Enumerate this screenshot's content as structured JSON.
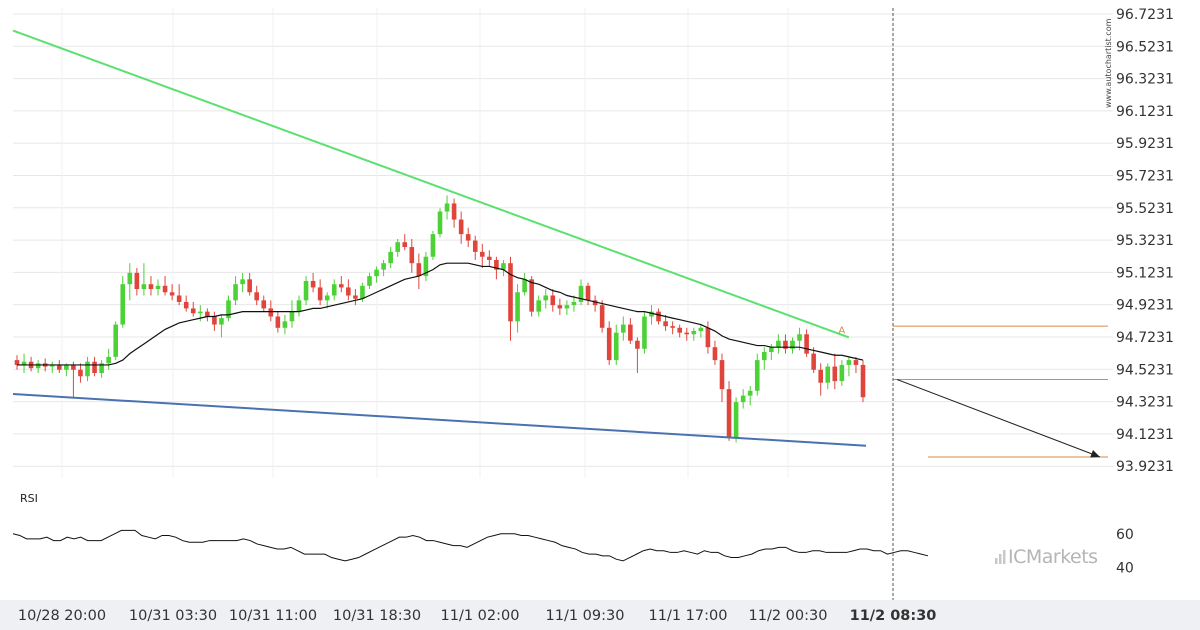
{
  "brand": {
    "watermark": "www.autochartist.com",
    "logo_text": "ICMarkets"
  },
  "chart_data": [
    {
      "type": "candlestick",
      "title": "",
      "y_ticks": [
        "96.7231",
        "96.5231",
        "96.3231",
        "96.1231",
        "95.9231",
        "95.7231",
        "95.5231",
        "95.3231",
        "95.1231",
        "94.9231",
        "94.7231",
        "94.5231",
        "94.3231",
        "94.1231",
        "93.9231"
      ],
      "ylim": [
        93.85,
        96.76
      ],
      "x_ticks": [
        "10/28 20:00",
        "10/31 03:30",
        "10/31 11:00",
        "10/31 18:30",
        "11/1 02:00",
        "11/1 09:30",
        "11/1 17:00",
        "11/2 00:30",
        "11/2 08:30"
      ],
      "highlighted_x_tick": "11/2 08:30",
      "grid": true,
      "colors": {
        "up": "#4cd137",
        "down": "#e0453c",
        "resistance": "#5ce070",
        "support": "#4a72b0",
        "target": "#d98a40",
        "moving_average": "#111111",
        "projection": "#222222"
      },
      "candles": [
        [
          94.58,
          94.61,
          94.52,
          94.55
        ],
        [
          94.55,
          94.62,
          94.5,
          94.57
        ],
        [
          94.57,
          94.6,
          94.51,
          94.53
        ],
        [
          94.53,
          94.58,
          94.5,
          94.56
        ],
        [
          94.56,
          94.59,
          94.51,
          94.54
        ],
        [
          94.54,
          94.57,
          94.5,
          94.55
        ],
        [
          94.55,
          94.58,
          94.5,
          94.52
        ],
        [
          94.52,
          94.56,
          94.48,
          94.55
        ],
        [
          94.55,
          94.57,
          94.35,
          94.52
        ],
        [
          94.52,
          94.56,
          94.44,
          94.48
        ],
        [
          94.48,
          94.6,
          94.45,
          94.57
        ],
        [
          94.57,
          94.6,
          94.48,
          94.5
        ],
        [
          94.5,
          94.58,
          94.47,
          94.56
        ],
        [
          94.56,
          94.65,
          94.52,
          94.6
        ],
        [
          94.6,
          94.82,
          94.58,
          94.8
        ],
        [
          94.8,
          95.1,
          94.78,
          95.05
        ],
        [
          95.05,
          95.18,
          94.95,
          95.12
        ],
        [
          95.12,
          95.15,
          94.98,
          95.02
        ],
        [
          95.02,
          95.18,
          94.98,
          95.05
        ],
        [
          95.05,
          95.1,
          94.98,
          95.02
        ],
        [
          95.02,
          95.08,
          94.98,
          95.04
        ],
        [
          95.04,
          95.1,
          94.98,
          95.0
        ],
        [
          95.0,
          95.05,
          94.95,
          94.98
        ],
        [
          94.98,
          95.05,
          94.92,
          94.94
        ],
        [
          94.94,
          94.98,
          94.88,
          94.9
        ],
        [
          94.9,
          94.94,
          94.85,
          94.87
        ],
        [
          94.87,
          94.92,
          94.82,
          94.88
        ],
        [
          94.88,
          94.9,
          94.82,
          94.85
        ],
        [
          94.85,
          94.88,
          94.76,
          94.8
        ],
        [
          94.8,
          94.86,
          94.72,
          94.84
        ],
        [
          94.84,
          94.98,
          94.82,
          94.95
        ],
        [
          94.95,
          95.1,
          94.92,
          95.05
        ],
        [
          95.05,
          95.12,
          95.0,
          95.08
        ],
        [
          95.08,
          95.12,
          94.98,
          95.0
        ],
        [
          95.0,
          95.04,
          94.92,
          94.95
        ],
        [
          94.95,
          94.98,
          94.88,
          94.9
        ],
        [
          94.9,
          94.95,
          94.82,
          94.85
        ],
        [
          94.85,
          94.88,
          94.75,
          94.78
        ],
        [
          94.78,
          94.86,
          94.74,
          94.82
        ],
        [
          94.82,
          94.95,
          94.78,
          94.88
        ],
        [
          94.88,
          94.98,
          94.85,
          94.95
        ],
        [
          94.95,
          95.1,
          94.92,
          95.07
        ],
        [
          95.07,
          95.12,
          95.0,
          95.03
        ],
        [
          95.03,
          95.08,
          94.92,
          94.95
        ],
        [
          94.95,
          95.0,
          94.9,
          94.98
        ],
        [
          94.98,
          95.08,
          94.95,
          95.05
        ],
        [
          95.05,
          95.1,
          95.0,
          95.03
        ],
        [
          95.03,
          95.08,
          94.95,
          94.98
        ],
        [
          94.98,
          95.02,
          94.92,
          94.96
        ],
        [
          94.96,
          95.06,
          94.94,
          95.04
        ],
        [
          95.04,
          95.12,
          95.02,
          95.1
        ],
        [
          95.1,
          95.16,
          95.06,
          95.14
        ],
        [
          95.14,
          95.2,
          95.1,
          95.18
        ],
        [
          95.18,
          95.28,
          95.15,
          95.25
        ],
        [
          95.25,
          95.33,
          95.22,
          95.31
        ],
        [
          95.31,
          95.36,
          95.26,
          95.28
        ],
        [
          95.28,
          95.33,
          95.12,
          95.18
        ],
        [
          95.18,
          95.24,
          95.02,
          95.1
        ],
        [
          95.1,
          95.25,
          95.07,
          95.22
        ],
        [
          95.22,
          95.38,
          95.2,
          95.36
        ],
        [
          95.36,
          95.52,
          95.34,
          95.5
        ],
        [
          95.5,
          95.6,
          95.45,
          95.55
        ],
        [
          95.55,
          95.58,
          95.4,
          95.45
        ],
        [
          95.45,
          95.5,
          95.3,
          95.36
        ],
        [
          95.36,
          95.4,
          95.28,
          95.32
        ],
        [
          95.32,
          95.35,
          95.2,
          95.25
        ],
        [
          95.25,
          95.3,
          95.15,
          95.22
        ],
        [
          95.22,
          95.26,
          95.16,
          95.2
        ],
        [
          95.2,
          95.22,
          95.08,
          95.14
        ],
        [
          95.14,
          95.2,
          95.1,
          95.18
        ],
        [
          95.18,
          95.22,
          94.7,
          94.82
        ],
        [
          94.82,
          95.05,
          94.75,
          95.0
        ],
        [
          95.0,
          95.12,
          94.98,
          95.08
        ],
        [
          95.08,
          95.1,
          94.85,
          94.88
        ],
        [
          94.88,
          94.98,
          94.85,
          94.95
        ],
        [
          94.95,
          95.02,
          94.9,
          94.98
        ],
        [
          94.98,
          95.02,
          94.88,
          94.92
        ],
        [
          94.92,
          94.96,
          94.86,
          94.9
        ],
        [
          94.9,
          94.95,
          94.86,
          94.92
        ],
        [
          94.92,
          94.98,
          94.88,
          94.94
        ],
        [
          94.94,
          95.08,
          94.92,
          95.04
        ],
        [
          95.04,
          95.06,
          94.92,
          94.95
        ],
        [
          94.95,
          94.98,
          94.88,
          94.92
        ],
        [
          94.92,
          94.95,
          94.75,
          94.78
        ],
        [
          94.78,
          94.82,
          94.55,
          94.58
        ],
        [
          94.58,
          94.8,
          94.55,
          94.75
        ],
        [
          94.75,
          94.85,
          94.7,
          94.8
        ],
        [
          94.8,
          94.84,
          94.68,
          94.7
        ],
        [
          94.7,
          94.72,
          94.5,
          94.65
        ],
        [
          94.65,
          94.88,
          94.62,
          94.85
        ],
        [
          94.85,
          94.92,
          94.8,
          94.88
        ],
        [
          94.88,
          94.9,
          94.8,
          94.82
        ],
        [
          94.82,
          94.86,
          94.76,
          94.79
        ],
        [
          94.79,
          94.82,
          94.74,
          94.78
        ],
        [
          94.78,
          94.8,
          94.72,
          94.75
        ],
        [
          94.75,
          94.78,
          94.7,
          94.74
        ],
        [
          94.74,
          94.78,
          94.7,
          94.76
        ],
        [
          94.76,
          94.8,
          94.72,
          94.78
        ],
        [
          94.78,
          94.82,
          94.62,
          94.66
        ],
        [
          94.66,
          94.7,
          94.55,
          94.58
        ],
        [
          94.58,
          94.62,
          94.32,
          94.4
        ],
        [
          94.4,
          94.45,
          94.08,
          94.1
        ],
        [
          94.1,
          94.35,
          94.07,
          94.32
        ],
        [
          94.32,
          94.4,
          94.28,
          94.36
        ],
        [
          94.36,
          94.42,
          94.3,
          94.39
        ],
        [
          94.39,
          94.62,
          94.36,
          94.58
        ],
        [
          94.58,
          94.66,
          94.52,
          94.63
        ],
        [
          94.63,
          94.68,
          94.58,
          94.66
        ],
        [
          94.66,
          94.74,
          94.62,
          94.7
        ],
        [
          94.7,
          94.74,
          94.62,
          94.65
        ],
        [
          94.65,
          94.72,
          94.62,
          94.7
        ],
        [
          94.7,
          94.78,
          94.64,
          94.74
        ],
        [
          94.74,
          94.77,
          94.6,
          94.62
        ],
        [
          94.62,
          94.66,
          94.5,
          94.52
        ],
        [
          94.52,
          94.56,
          94.36,
          94.44
        ],
        [
          94.44,
          94.56,
          94.4,
          94.54
        ],
        [
          94.54,
          94.62,
          94.4,
          94.45
        ],
        [
          94.45,
          94.58,
          94.42,
          94.55
        ],
        [
          94.55,
          94.6,
          94.48,
          94.58
        ],
        [
          94.58,
          94.6,
          94.5,
          94.55
        ],
        [
          94.55,
          94.58,
          94.32,
          94.35
        ]
      ],
      "moving_average": [
        94.55,
        94.55,
        94.55,
        94.55,
        94.55,
        94.55,
        94.55,
        94.55,
        94.55,
        94.55,
        94.55,
        94.55,
        94.55,
        94.55,
        94.56,
        94.58,
        94.62,
        94.65,
        94.68,
        94.71,
        94.74,
        94.77,
        94.79,
        94.81,
        94.82,
        94.83,
        94.84,
        94.85,
        94.85,
        94.86,
        94.86,
        94.87,
        94.88,
        94.88,
        94.88,
        94.88,
        94.88,
        94.88,
        94.88,
        94.88,
        94.88,
        94.89,
        94.9,
        94.9,
        94.91,
        94.92,
        94.93,
        94.94,
        94.95,
        94.96,
        94.98,
        95.0,
        95.02,
        95.04,
        95.06,
        95.08,
        95.09,
        95.1,
        95.12,
        95.14,
        95.17,
        95.18,
        95.18,
        95.18,
        95.18,
        95.17,
        95.16,
        95.16,
        95.15,
        95.14,
        95.11,
        95.09,
        95.08,
        95.06,
        95.05,
        95.03,
        95.01,
        95.0,
        94.98,
        94.97,
        94.96,
        94.95,
        94.94,
        94.93,
        94.92,
        94.91,
        94.9,
        94.89,
        94.88,
        94.88,
        94.87,
        94.86,
        94.85,
        94.84,
        94.83,
        94.82,
        94.81,
        94.8,
        94.78,
        94.76,
        94.73,
        94.71,
        94.7,
        94.69,
        94.68,
        94.67,
        94.67,
        94.66,
        94.66,
        94.66,
        94.66,
        94.66,
        94.65,
        94.64,
        94.63,
        94.62,
        94.61,
        94.61,
        94.6,
        94.59,
        94.58
      ],
      "resistance_line": {
        "from": [
          0,
          96.62
        ],
        "to": [
          118,
          94.72
        ]
      },
      "support_line": {
        "from": [
          0,
          94.37
        ],
        "to": [
          121,
          94.05
        ]
      },
      "target_lines": [
        94.79,
        94.46,
        93.98
      ],
      "projection": {
        "from": [
          121,
          94.46
        ],
        "to": [
          146,
          93.98
        ]
      },
      "event_marker": {
        "index": 117,
        "symbol": "A"
      }
    },
    {
      "type": "line",
      "panel_title": "RSI",
      "y_ticks": [
        "60",
        "40"
      ],
      "ylim": [
        28,
        77
      ],
      "values": [
        60,
        59,
        57,
        57,
        57,
        58,
        56,
        56,
        58,
        57,
        58,
        56,
        56,
        56,
        58,
        60,
        62,
        62,
        62,
        59,
        58,
        57,
        59,
        59,
        58,
        56,
        55,
        55,
        55,
        56,
        56,
        56,
        56,
        56,
        57,
        56,
        54,
        53,
        52,
        51,
        51,
        52,
        50,
        48,
        48,
        48,
        48,
        46,
        45,
        44,
        45,
        46,
        48,
        50,
        52,
        54,
        56,
        58,
        58,
        59,
        58,
        56,
        56,
        55,
        54,
        53,
        53,
        52,
        54,
        56,
        58,
        59,
        60,
        60,
        60,
        59,
        59,
        58,
        57,
        56,
        55,
        53,
        52,
        51,
        49,
        48,
        48,
        47,
        47,
        45,
        44,
        46,
        48,
        50,
        51,
        50,
        50,
        49,
        49,
        50,
        49,
        48,
        50,
        49,
        49,
        47,
        46,
        46,
        47,
        48,
        50,
        51,
        51,
        52,
        52,
        50,
        49,
        49,
        50,
        50,
        49,
        49,
        49,
        49,
        50,
        51,
        51,
        50,
        50,
        48,
        49,
        50,
        50,
        49,
        48,
        47
      ]
    }
  ]
}
